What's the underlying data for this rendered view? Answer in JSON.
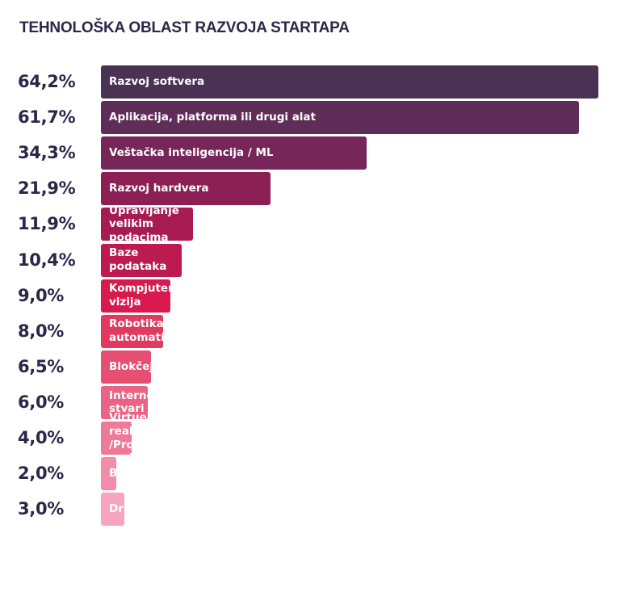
{
  "chart_data": {
    "type": "bar",
    "orientation": "horizontal",
    "title": "TEHNOLOŠKA OBLAST RAZVOJA STARTAPA",
    "xlabel": "",
    "ylabel": "",
    "xlim": [
      0,
      64.2
    ],
    "grid": false,
    "legend": "none",
    "categories": [
      "Razvoj softvera",
      "Aplikacija, platforma ili drugi alat",
      "Veštačka inteligencija / ML",
      "Razvoj hardvera",
      "Upravljanje velikim podacima",
      "Baze podataka",
      "Kompjuterska vizija",
      "Robotika i automatizacija",
      "Blokčejn",
      "Internet stvari",
      "Virtuelna realnost\n/Proširena realnost",
      "Biotehnologija",
      "Drugo"
    ],
    "values": [
      64.2,
      61.7,
      34.3,
      21.9,
      11.9,
      10.4,
      9.0,
      8.0,
      6.5,
      6.0,
      4.0,
      2.0,
      3.0
    ],
    "value_labels": [
      "64,2%",
      "61,7%",
      "34,3%",
      "21,9%",
      "11,9%",
      "10,4%",
      "9,0%",
      "8,0%",
      "6,5%",
      "6,0%",
      "4,0%",
      "2,0%",
      "3,0%"
    ],
    "colors": [
      "#4a3255",
      "#5f2d58",
      "#762658",
      "#8c2055",
      "#a51b52",
      "#bd1a4f",
      "#d91a4f",
      "#e03a5f",
      "#e64e72",
      "#ea6284",
      "#ee7a98",
      "#f28ca8",
      "#f7a5bc"
    ],
    "value_color": "#2c2748",
    "label_color": "#ffffff"
  }
}
